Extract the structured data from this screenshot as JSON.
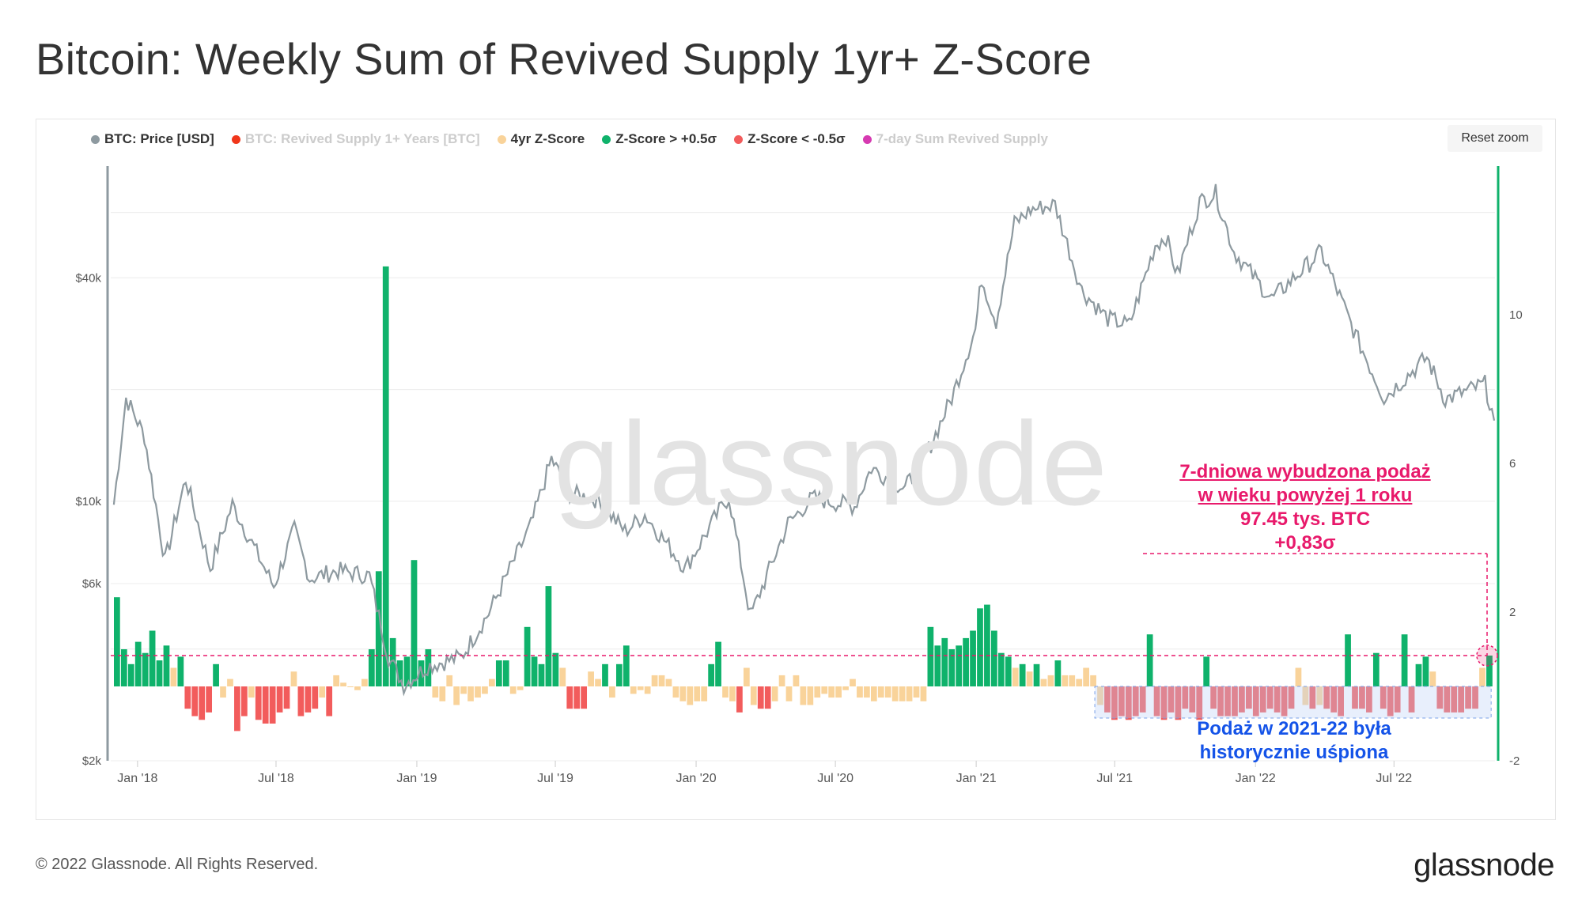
{
  "title": "Bitcoin: Weekly Sum of Revived Supply 1yr+ Z-Score",
  "reset_zoom": "Reset zoom",
  "watermark": "glassnode",
  "footer": {
    "copyright": "© 2022 Glassnode. All Rights Reserved.",
    "logo": "glassnode"
  },
  "legend": [
    {
      "label": "BTC: Price [USD]",
      "color": "#8e9aa0",
      "active": true
    },
    {
      "label": "BTC: Revived Supply 1+ Years [BTC]",
      "color": "#f0361a",
      "active": false
    },
    {
      "label": "4yr Z-Score",
      "color": "#f9d39a",
      "active": true
    },
    {
      "label": "Z-Score > +0.5σ",
      "color": "#0fb26b",
      "active": true
    },
    {
      "label": "Z-Score < -0.5σ",
      "color": "#f25c5c",
      "active": true
    },
    {
      "label": "7-day Sum Revived Supply",
      "color": "#d63ab1",
      "active": false
    }
  ],
  "annotations": {
    "pink": [
      "7-dniowa wybudzona podaż",
      "w wieku powyżej 1 roku",
      "97.45 tys. BTC",
      "+0,83σ"
    ],
    "blue": [
      "Podaż w 2021-22 była",
      "historycznie uśpiona"
    ]
  },
  "chart_data": {
    "type": "line",
    "x_ticks": [
      "Jan '18",
      "Jul '18",
      "Jan '19",
      "Jul '19",
      "Jan '20",
      "Jul '20",
      "Jan '21",
      "Jul '21",
      "Jan '22",
      "Jul '22"
    ],
    "y_left": {
      "label": "",
      "scale": "log",
      "ticks": [
        "$2k",
        "$6k",
        "$10k",
        "$40k"
      ],
      "tick_values": [
        2000,
        6000,
        10000,
        40000
      ],
      "range": [
        2000,
        80000
      ]
    },
    "y_right": {
      "label": "",
      "ticks": [
        "-2",
        "2",
        "6",
        "10"
      ],
      "tick_values": [
        -2,
        2,
        6,
        10
      ],
      "range": [
        -2,
        14
      ]
    },
    "grid": true,
    "legend_position": "top-left",
    "series": [
      {
        "name": "BTC: Price [USD]",
        "axis": "left",
        "points": [
          [
            "2017-12-01",
            9800
          ],
          [
            "2017-12-17",
            19000
          ],
          [
            "2018-01-10",
            15000
          ],
          [
            "2018-02-06",
            6900
          ],
          [
            "2018-03-05",
            11500
          ],
          [
            "2018-04-06",
            6600
          ],
          [
            "2018-05-05",
            9800
          ],
          [
            "2018-06-28",
            5900
          ],
          [
            "2018-07-25",
            8400
          ],
          [
            "2018-08-14",
            6200
          ],
          [
            "2018-09-20",
            6500
          ],
          [
            "2018-10-31",
            6300
          ],
          [
            "2018-11-25",
            3800
          ],
          [
            "2018-12-15",
            3200
          ],
          [
            "2019-01-15",
            3600
          ],
          [
            "2019-02-28",
            3800
          ],
          [
            "2019-04-05",
            5000
          ],
          [
            "2019-05-30",
            8600
          ],
          [
            "2019-06-26",
            13000
          ],
          [
            "2019-07-20",
            10500
          ],
          [
            "2019-08-25",
            10100
          ],
          [
            "2019-09-30",
            8300
          ],
          [
            "2019-10-26",
            9200
          ],
          [
            "2019-12-18",
            6600
          ],
          [
            "2020-01-31",
            9400
          ],
          [
            "2020-02-13",
            10300
          ],
          [
            "2020-03-12",
            4900
          ],
          [
            "2020-04-30",
            8700
          ],
          [
            "2020-06-01",
            10200
          ],
          [
            "2020-07-26",
            9700
          ],
          [
            "2020-08-17",
            12300
          ],
          [
            "2020-09-30",
            10800
          ],
          [
            "2020-10-31",
            13800
          ],
          [
            "2020-11-30",
            19000
          ],
          [
            "2020-12-31",
            29000
          ],
          [
            "2021-01-08",
            40000
          ],
          [
            "2021-01-27",
            30500
          ],
          [
            "2021-02-20",
            56000
          ],
          [
            "2021-03-13",
            61000
          ],
          [
            "2021-04-14",
            63000
          ],
          [
            "2021-05-19",
            37000
          ],
          [
            "2021-06-22",
            31000
          ],
          [
            "2021-07-20",
            29800
          ],
          [
            "2021-08-23",
            49000
          ],
          [
            "2021-09-06",
            51700
          ],
          [
            "2021-09-21",
            40700
          ],
          [
            "2021-10-20",
            64000
          ],
          [
            "2021-11-10",
            67500
          ],
          [
            "2021-12-04",
            47000
          ],
          [
            "2022-01-22",
            35000
          ],
          [
            "2022-03-28",
            47000
          ],
          [
            "2022-05-12",
            28000
          ],
          [
            "2022-06-18",
            19000
          ],
          [
            "2022-08-13",
            24400
          ],
          [
            "2022-09-06",
            18800
          ],
          [
            "2022-10-28",
            20700
          ],
          [
            "2022-11-09",
            16500
          ]
        ]
      },
      {
        "name": "4yr Z-Score",
        "axis": "right",
        "weekly_values": [
          2.4,
          1.0,
          0.6,
          1.2,
          0.9,
          1.5,
          0.7,
          1.1,
          0.5,
          0.8,
          -0.6,
          -0.8,
          -0.9,
          -0.7,
          0.6,
          -0.3,
          0.2,
          -1.2,
          -0.8,
          -0.3,
          -0.9,
          -1.0,
          -1.0,
          -0.7,
          -0.6,
          0.4,
          -0.8,
          -0.7,
          -0.6,
          -0.3,
          -0.8,
          0.3,
          0.1,
          0.0,
          -0.1,
          0.2,
          1.0,
          3.1,
          11.3,
          1.3,
          0.7,
          0.8,
          3.4,
          0.7,
          1.0,
          -0.3,
          -0.4,
          0.3,
          -0.5,
          -0.2,
          -0.4,
          -0.3,
          -0.2,
          0.2,
          0.7,
          0.7,
          -0.2,
          -0.1,
          1.6,
          0.8,
          0.6,
          2.7,
          0.9,
          0.5,
          -0.6,
          -0.6,
          -0.6,
          0.4,
          0.2,
          0.6,
          -0.3,
          0.6,
          1.1,
          -0.2,
          -0.1,
          -0.2,
          0.3,
          0.3,
          0.2,
          -0.3,
          -0.4,
          -0.5,
          -0.4,
          -0.4,
          0.6,
          1.2,
          -0.3,
          -0.4,
          -0.7,
          0.5,
          -0.5,
          -0.6,
          -0.6,
          -0.4,
          0.3,
          -0.4,
          0.3,
          -0.5,
          -0.5,
          -0.3,
          -0.2,
          -0.3,
          -0.3,
          -0.1,
          0.2,
          -0.3,
          -0.3,
          -0.4,
          -0.3,
          -0.3,
          -0.4,
          -0.4,
          -0.4,
          -0.3,
          -0.4,
          1.6,
          1.1,
          1.3,
          1.0,
          1.1,
          1.3,
          1.5,
          2.1,
          2.2,
          1.5,
          0.9,
          0.8,
          0.5,
          0.6,
          0.4,
          0.6,
          0.2,
          0.3,
          0.7,
          0.3,
          0.3,
          0.2,
          0.5,
          0.3,
          -0.5,
          -0.7,
          -0.9,
          -0.8,
          -0.9,
          -0.8,
          -0.7,
          1.4,
          -0.8,
          -0.9,
          -0.7,
          -0.9,
          -0.6,
          -0.7,
          -0.9,
          0.8,
          -0.6,
          -0.8,
          -0.8,
          -0.8,
          -0.7,
          -0.6,
          -0.8,
          -0.7,
          -0.6,
          -0.7,
          -0.8,
          -0.6,
          0.5,
          -0.5,
          -0.6,
          -0.5,
          -0.6,
          -0.7,
          -0.8,
          1.4,
          -0.6,
          -0.6,
          -0.7,
          0.9,
          -0.6,
          -0.8,
          -0.7,
          1.4,
          -0.7,
          0.6,
          0.8,
          0.4,
          -0.6,
          -0.7,
          -0.7,
          -0.7,
          -0.6,
          -0.6,
          0.5,
          0.83
        ]
      }
    ],
    "series_colors_by_threshold": {
      "above": "Z-Score > +0.5σ",
      "below": "Z-Score < -0.5σ",
      "otherwise": "4yr Z-Score"
    },
    "reference_value_z": 0.83
  }
}
